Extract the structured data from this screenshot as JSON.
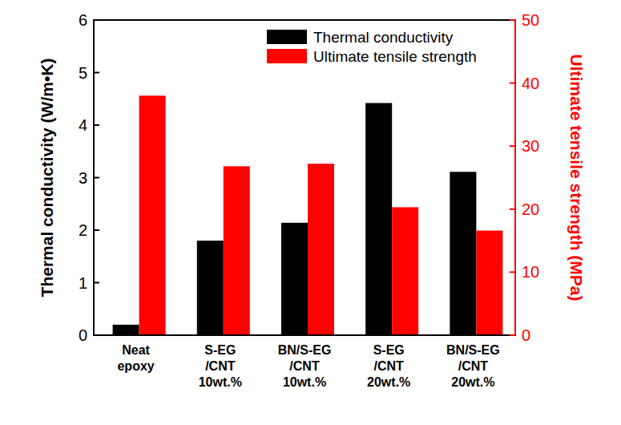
{
  "chart_data": {
    "type": "bar",
    "categories": [
      "Neat\nepoxy",
      "S-EG\n/CNT\n10wt.%",
      "BN/S-EG\n/CNT\n10wt.%",
      "S-EG\n/CNT\n20wt.%",
      "BN/S-EG\n/CNT\n20wt.%"
    ],
    "y_label": "Thermal conductivity (W/m•K)",
    "y2_label": "Ultimate tensile strength (MPa)",
    "series": [
      {
        "name": "Thermal conductivity",
        "color": "#000000",
        "values": [
          0.2,
          1.8,
          2.14,
          4.42,
          3.11
        ]
      },
      {
        "name": "Ultimate tensile strength",
        "color": "#ff0000",
        "axis": "y2",
        "values": [
          38,
          26.8,
          27.2,
          20.3,
          16.6
        ]
      }
    ],
    "ylim": [
      0,
      6
    ],
    "yticks": [
      0,
      1,
      2,
      3,
      4,
      5,
      6
    ],
    "y2lim": [
      0,
      50
    ],
    "y2ticks": [
      0,
      10,
      20,
      30,
      40,
      50
    ],
    "legend": "upper right"
  }
}
